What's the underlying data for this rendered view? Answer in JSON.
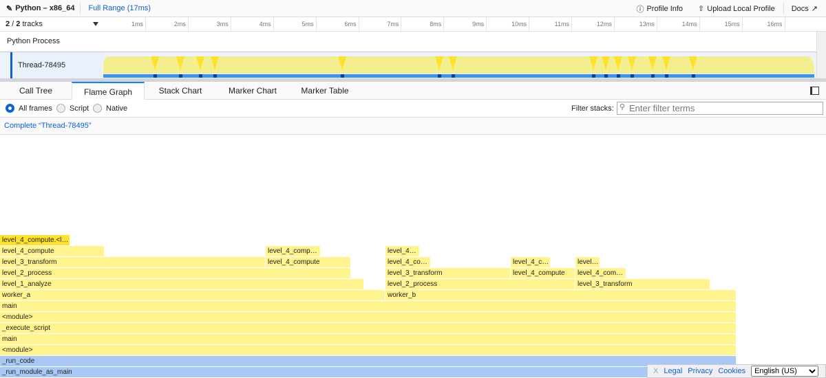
{
  "header": {
    "profile_name": "Python – x86_64",
    "range": "Full Range (17ms)",
    "profile_info": "Profile Info",
    "upload": "Upload Local Profile",
    "docs": "Docs"
  },
  "timeline": {
    "tracks_visible": "2",
    "tracks_total": "2",
    "tracks_label": "tracks",
    "ticks": [
      "1ms",
      "2ms",
      "3ms",
      "4ms",
      "5ms",
      "6ms",
      "7ms",
      "8ms",
      "9ms",
      "10ms",
      "11ms",
      "12ms",
      "13ms",
      "14ms",
      "15ms",
      "16ms"
    ],
    "process": "Python Process",
    "thread": "Thread-78495"
  },
  "tabs": [
    "Call Tree",
    "Flame Graph",
    "Stack Chart",
    "Marker Chart",
    "Marker Table"
  ],
  "selected_tab": "Flame Graph",
  "options": {
    "all": "All frames",
    "script": "Script",
    "native": "Native",
    "selected": "All frames",
    "filter_label": "Filter stacks:",
    "filter_placeholder": "Enter filter terms"
  },
  "breadcrumb": "Complete “Thread-78495”",
  "frames": [
    "_run_module_as_main",
    "_run_code",
    "<module>",
    "main",
    "_execute_script",
    "<module>",
    "main",
    "worker_a",
    "worker_b",
    "level_1_analyze",
    "level_2_process",
    "level_3_transform",
    "level_2_process",
    "level_3_transform",
    "level_4_compute",
    "level_4_com…",
    "level_3_transform",
    "level_4_compute",
    "",
    "level_4_co…",
    "level_4_c…",
    "level…",
    "level_4_compute",
    "level_4_comp…",
    "level_4…",
    "level_4_compute.<l…"
  ],
  "footer": {
    "close": "X",
    "legal": "Legal",
    "privacy": "Privacy",
    "cookies": "Cookies",
    "language": "English (US)"
  },
  "colors": {
    "accent": "#0a62d6",
    "frame": "#fff48f",
    "frame_hot": "#fde12a",
    "frame_native": "#a8c8f5",
    "cpu_graph": "#f4ef8e",
    "samples": "#3b95f0"
  }
}
